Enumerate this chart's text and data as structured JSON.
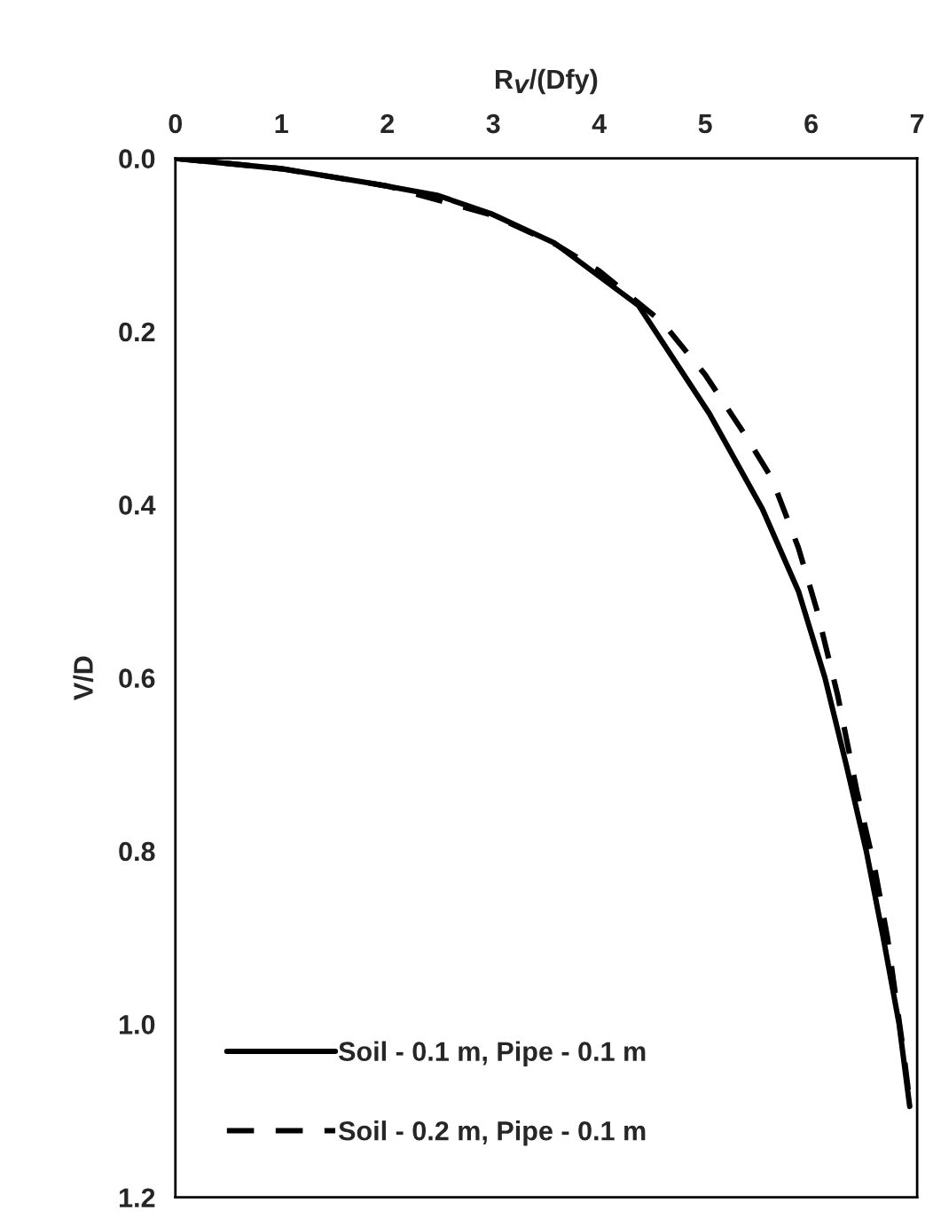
{
  "chart_data": {
    "type": "line",
    "xlabel": "R$_{V}$/(Dfy)",
    "ylabel": "V/D",
    "xlim": [
      0,
      7
    ],
    "xticks": [
      0,
      1,
      2,
      3,
      4,
      5,
      6,
      7
    ],
    "ylim": [
      1.2,
      0.0
    ],
    "yticks": [
      {
        "value": 0,
        "label": "0.0"
      },
      {
        "value": 0.2,
        "label": "0.2"
      },
      {
        "value": 0.4,
        "label": "0.4"
      },
      {
        "value": 0.6,
        "label": "0.6"
      },
      {
        "value": 0.8,
        "label": "0.8"
      },
      {
        "value": 1.0,
        "label": "1.0"
      },
      {
        "value": 1.2,
        "label": "1.2"
      }
    ],
    "grid": false,
    "legend": "bottom left",
    "marker": "none",
    "series": [
      {
        "name": "Soil - 0.1 m, Pipe - 0.1 m",
        "color": "#000000",
        "line_style": "solid",
        "x": [
          0,
          1.0,
          1.86,
          2.48,
          2.98,
          3.58,
          4.37,
          5.04,
          5.54,
          5.88,
          6.13,
          6.33,
          6.52,
          6.68,
          6.83,
          6.93
        ],
        "values": [
          0,
          0.012,
          0.029,
          0.043,
          0.064,
          0.098,
          0.17,
          0.295,
          0.405,
          0.5,
          0.6,
          0.7,
          0.8,
          0.9,
          1.0,
          1.095
        ]
      },
      {
        "name": "Soil - 0.2 m, Pipe - 0.1 m",
        "color": "#000000",
        "line_style": "dashed",
        "x": [
          0,
          1.0,
          2.0,
          3.0,
          3.6,
          4.0,
          4.6,
          5.0,
          5.38,
          5.63,
          5.88,
          6.05,
          6.25,
          6.43,
          6.6,
          6.72,
          6.88,
          6.93
        ],
        "values": [
          0,
          0.012,
          0.032,
          0.066,
          0.1,
          0.13,
          0.19,
          0.25,
          0.32,
          0.37,
          0.45,
          0.52,
          0.62,
          0.73,
          0.82,
          0.9,
          1.04,
          1.09
        ]
      }
    ]
  }
}
